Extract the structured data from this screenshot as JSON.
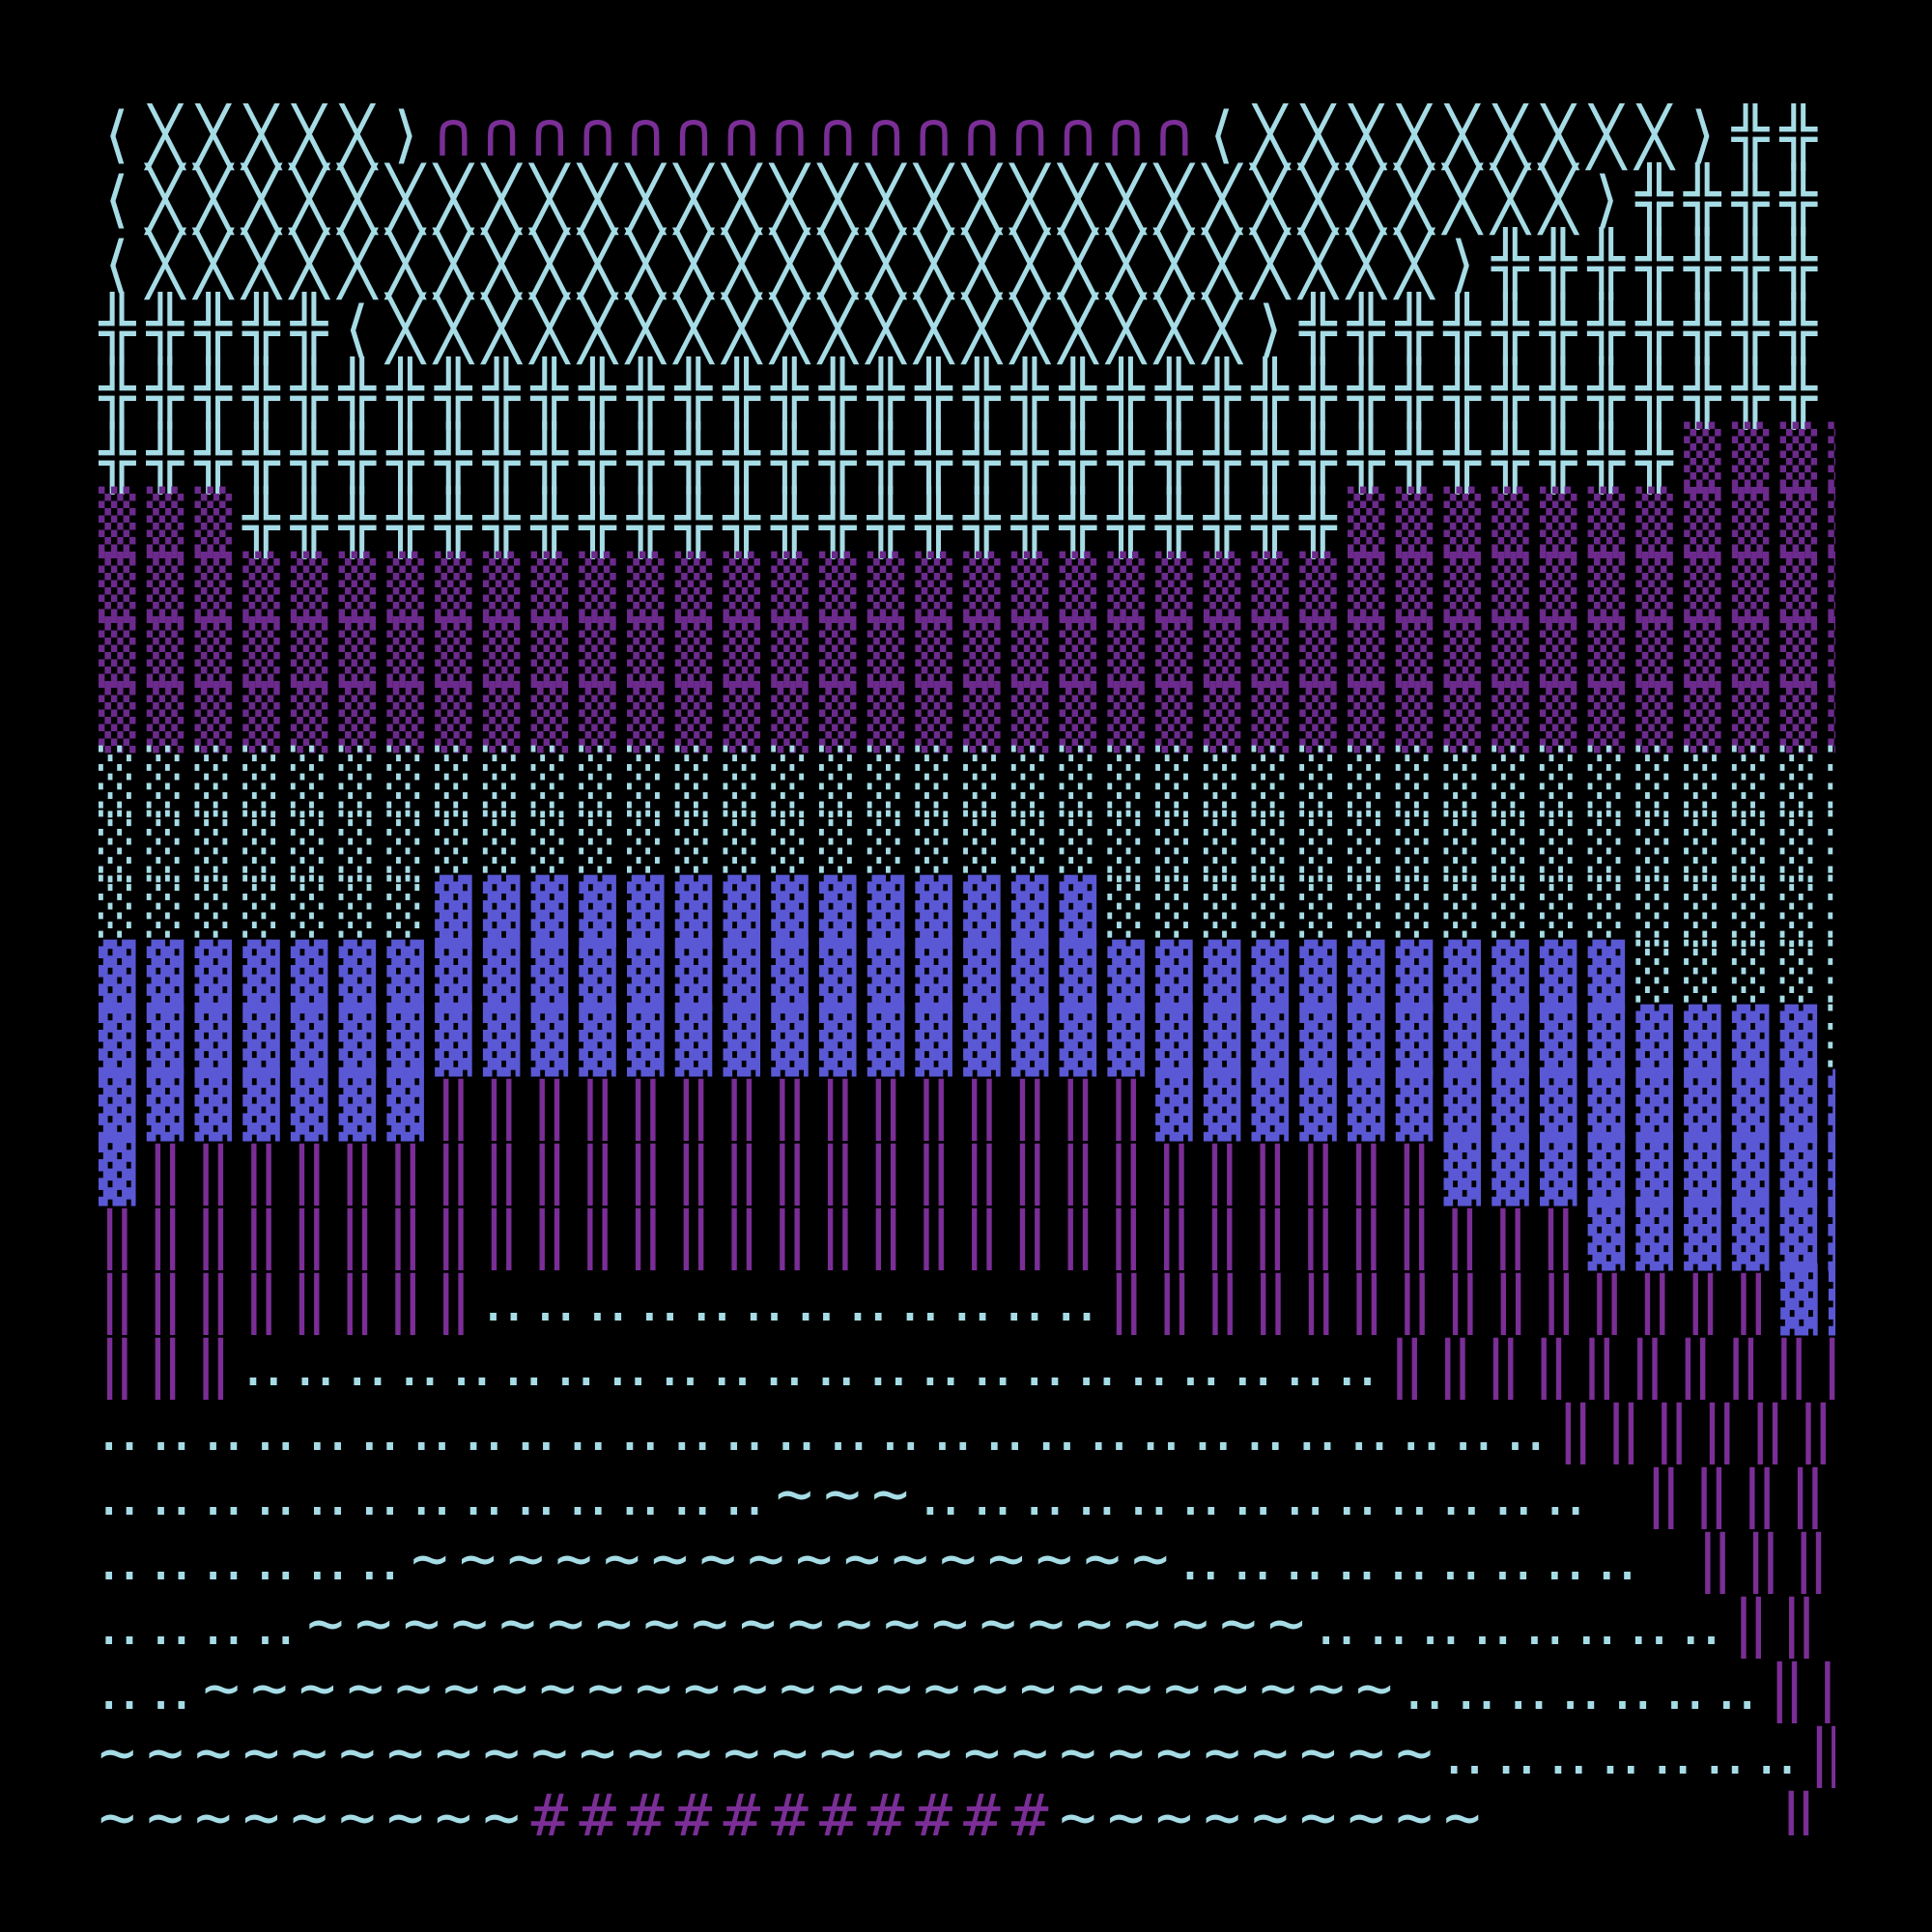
{
  "rows": [
    [
      {
        "text": "⟨╳╳╳╳╳⟩",
        "color": "#a6dce6"
      },
      {
        "text": "∩∩∩∩∩∩∩∩∩∩∩∩∩∩∩∩",
        "color": "#7a2e96"
      },
      {
        "text": "⟨╳╳╳╳╳╳╳╳╳⟩╬╬:",
        "color": "#a6dce6"
      }
    ],
    [
      {
        "text": "⟨╳╳╳╳╳╳╳╳╳╳╳╳╳╳╳╳╳╳╳╳╳╳╳╳╳╳╳╳╳╳⟩╬╬╬╬:",
        "color": "#a6dce6"
      }
    ],
    [
      {
        "text": "⟨╳╳╳╳╳╳╳╳╳╳╳╳╳╳╳╳╳╳╳╳╳╳╳╳╳╳╳⟩╬╬╬╬╬╬╬:",
        "color": "#a6dce6"
      }
    ],
    [
      {
        "text": "╬╬╬╬╬⟨╳╳╳╳╳╳╳╳╳╳╳╳╳╳╳╳╳╳⟩╬╬╬╬╬╬╬╬╬╬╬:",
        "color": "#a6dce6"
      }
    ],
    [
      {
        "text": "╬╬╬╬╬╬╬╬╬╬╬╬╬╬╬╬╬╬╬╬╬╬╬╬╬╬╬╬╬╬╬╬╬╬╬╬:",
        "color": "#a6dce6"
      }
    ],
    [
      {
        "text": "╬╬╬╬╬╬╬╬╬╬╬╬╬╬╬╬╬╬╬╬╬╬╬╬╬╬╬╬╬╬╬╬╬",
        "color": "#a6dce6"
      },
      {
        "text": "▒▒▒▒",
        "color": "#6b2a8c"
      }
    ],
    [
      {
        "text": "▒▒▒",
        "color": "#6b2a8c"
      },
      {
        "text": "╬╬╬╬╬╬╬╬╬╬╬╬╬╬╬╬╬╬╬╬╬╬╬",
        "color": "#a6dce6"
      },
      {
        "text": "▒▒▒▒▒▒▒▒▒▒▒",
        "color": "#6b2a8c"
      }
    ],
    [
      {
        "text": "▒▒▒▒▒▒▒▒▒▒▒▒▒▒▒▒▒▒▒▒▒▒▒▒▒▒▒▒▒▒▒▒▒▒▒▒▒",
        "color": "#6b2a8c"
      }
    ],
    [
      {
        "text": "▒▒▒▒▒▒▒▒▒▒▒▒▒▒▒▒▒▒▒▒▒▒▒▒▒▒▒▒▒▒▒▒▒▒▒▒▒",
        "color": "#6b2a8c"
      }
    ],
    [
      {
        "text": "▒▒▒▒▒▒▒▒▒▒▒▒▒▒▒▒▒▒▒▒▒▒▒▒▒▒▒▒▒▒▒▒▒▒▒▒▒",
        "color": "#6b2a8c"
      }
    ],
    [
      {
        "text": "░░░░░░░░░░░░░░░░░░░░░░░░░░░░░░░░░░░░░",
        "color": "#a6dce6"
      }
    ],
    [
      {
        "text": "░░░░░░░░░░░░░░░░░░░░░░░░░░░░░░░░░░░░░",
        "color": "#a6dce6"
      }
    ],
    [
      {
        "text": "░░░░░░░",
        "color": "#a6dce6"
      },
      {
        "text": "▓▓▓▓▓▓▓▓▓▓▓▓▓▓",
        "color": "#5a58d4"
      },
      {
        "text": "░░░░░░░░░░░░░░░░",
        "color": "#a6dce6"
      }
    ],
    [
      {
        "text": "▓▓▓▓▓▓▓▓▓▓▓▓▓▓▓▓▓▓▓▓▓▓▓▓▓▓▓▓▓▓▓▓",
        "color": "#5a58d4"
      },
      {
        "text": "░░░░░",
        "color": "#a6dce6"
      }
    ],
    [
      {
        "text": "▓▓▓▓▓▓▓▓▓▓▓▓▓▓▓▓▓▓▓▓▓▓▓▓▓▓▓▓▓▓▓▓▓▓▓▓",
        "color": "#5a58d4"
      },
      {
        "text": "░",
        "color": "#a6dce6"
      }
    ],
    [
      {
        "text": "▓▓▓▓▓▓▓",
        "color": "#5a58d4"
      },
      {
        "text": "‖‖‖‖‖‖‖‖‖‖‖‖‖‖‖",
        "color": "#7a2e96"
      },
      {
        "text": "▓▓▓▓▓▓▓▓▓▓▓▓▓▓▓",
        "color": "#5a58d4"
      }
    ],
    [
      {
        "text": "▓",
        "color": "#5a58d4"
      },
      {
        "text": "‖‖‖‖‖‖‖‖‖‖‖‖‖‖‖‖‖‖‖‖‖‖‖‖‖‖‖",
        "color": "#7a2e96"
      },
      {
        "text": "▓▓▓▓▓▓▓▓▓",
        "color": "#5a58d4"
      }
    ],
    [
      {
        "text": "‖‖‖‖‖‖‖‖‖‖‖‖‖‖‖‖‖‖‖‖‖‖‖‖‖‖‖‖‖‖‖",
        "color": "#7a2e96"
      },
      {
        "text": "▓▓▓▓▓▓",
        "color": "#5a58d4"
      }
    ],
    [
      {
        "text": "‖‖‖‖‖‖‖‖",
        "color": "#7a2e96"
      },
      {
        "text": "‥‥‥‥‥‥‥‥‥‥‥‥",
        "color": "#a6dce6"
      },
      {
        "text": "‖‖‖‖‖‖‖‖‖‖‖‖‖‖",
        "color": "#7a2e96"
      },
      {
        "text": "▓▓▓",
        "color": "#5a58d4"
      }
    ],
    [
      {
        "text": "‖‖‖",
        "color": "#7a2e96"
      },
      {
        "text": "‥‥‥‥‥‥‥‥‥‥‥‥‥‥‥‥‥‥‥‥‥‥",
        "color": "#a6dce6"
      },
      {
        "text": "‖‖‖‖‖‖‖‖‖‖",
        "color": "#7a2e96"
      },
      {
        "text": "▓▓",
        "color": "#5a58d4"
      }
    ],
    [
      {
        "text": "‥‥‥‥‥‥‥‥‥‥‥‥‥‥‥‥‥‥‥‥‥‥‥‥‥‥‥‥",
        "color": "#a6dce6"
      },
      {
        "text": "‖‖‖‖‖‖‖‖ ",
        "color": "#7a2e96"
      }
    ],
    [
      {
        "text": "‥‥‥‥‥‥‥‥‥‥‥‥‥~~~‥‥‥‥‥‥‥‥‥‥‥‥‥ ",
        "color": "#a6dce6"
      },
      {
        "text": "‖‖‖‖‖‖ ",
        "color": "#7a2e96"
      }
    ],
    [
      {
        "text": "‥‥‥‥‥‥~~~~~~~~~~~~~~~~‥‥‥‥‥‥‥‥‥ ",
        "color": "#a6dce6"
      },
      {
        "text": "‖‖‖‖ ",
        "color": "#7a2e96"
      }
    ],
    [
      {
        "text": "‥‥‥‥~~~~~~~~~~~~~~~~~~~~~‥‥‥‥‥‥‥‥",
        "color": "#a6dce6"
      },
      {
        "text": "‖‖‖ ",
        "color": "#7a2e96"
      }
    ],
    [
      {
        "text": "‥‥~~~~~~~~~~~~~~~~~~~~~~~~~‥‥‥‥‥‥‥",
        "color": "#a6dce6"
      },
      {
        "text": "‖‖ ",
        "color": "#7a2e96"
      }
    ],
    [
      {
        "text": "~~~~~~~~~~~~~~~~~~~~~~~~~~~~‥‥‥‥‥‥‥",
        "color": "#a6dce6"
      },
      {
        "text": "‖ ",
        "color": "#7a2e96"
      }
    ],
    [
      {
        "text": "~~~~~~~~~",
        "color": "#a6dce6"
      },
      {
        "text": "###########",
        "color": "#7a2e96"
      },
      {
        "text": "~~~~~~~~~      ",
        "color": "#a6dce6"
      },
      {
        "text": "‖ ",
        "color": "#7a2e96"
      }
    ]
  ]
}
